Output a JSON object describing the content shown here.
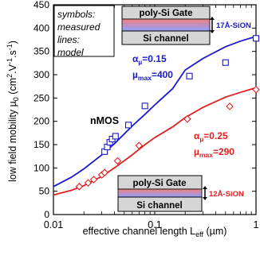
{
  "chart_data": {
    "type": "scatter",
    "xlabel_main": "effective channel length L",
    "xlabel_sub": "eff",
    "xlabel_unit": " (µm)",
    "ylabel_pre": "low field mobility µ",
    "ylabel_sub": "0",
    "ylabel_unit": " (cm",
    "ylabel_sup1": "2",
    "ylabel_mid": ".V",
    "ylabel_sup2": "-1",
    "ylabel_mid2": ".s",
    "ylabel_sup3": "-1",
    "ylabel_end": ")",
    "x_scale": "log",
    "xlim": [
      0.01,
      1
    ],
    "ylim": [
      0,
      450
    ],
    "x_ticks": [
      {
        "value": 0.01,
        "label": "0.01"
      },
      {
        "value": 0.1,
        "label": "0.1"
      },
      {
        "value": 1,
        "label": "1"
      }
    ],
    "y_ticks": [
      {
        "value": 0,
        "label": "0"
      },
      {
        "value": 50,
        "label": "50"
      },
      {
        "value": 100,
        "label": "100"
      },
      {
        "value": 150,
        "label": "150"
      },
      {
        "value": 200,
        "label": "200"
      },
      {
        "value": 250,
        "label": "250"
      },
      {
        "value": 300,
        "label": "300"
      },
      {
        "value": 350,
        "label": "350"
      },
      {
        "value": 400,
        "label": "400"
      },
      {
        "value": 450,
        "label": "450"
      }
    ],
    "series": [
      {
        "marker": "square",
        "color": "#1a1acc",
        "points": [
          {
            "x": 0.032,
            "y": 135
          },
          {
            "x": 0.034,
            "y": 145
          },
          {
            "x": 0.036,
            "y": 155
          },
          {
            "x": 0.038,
            "y": 162
          },
          {
            "x": 0.041,
            "y": 168
          },
          {
            "x": 0.055,
            "y": 192
          },
          {
            "x": 0.08,
            "y": 233
          },
          {
            "x": 0.22,
            "y": 297
          },
          {
            "x": 0.5,
            "y": 326
          },
          {
            "x": 1.0,
            "y": 378
          }
        ]
      },
      {
        "marker": "diamond",
        "color": "#e02020",
        "points": [
          {
            "x": 0.018,
            "y": 60
          },
          {
            "x": 0.022,
            "y": 68
          },
          {
            "x": 0.025,
            "y": 75
          },
          {
            "x": 0.03,
            "y": 85
          },
          {
            "x": 0.032,
            "y": 90
          },
          {
            "x": 0.043,
            "y": 115
          },
          {
            "x": 0.07,
            "y": 148
          },
          {
            "x": 0.21,
            "y": 205
          },
          {
            "x": 0.55,
            "y": 232
          },
          {
            "x": 1.0,
            "y": 268
          }
        ]
      }
    ],
    "model_lines": [
      {
        "color": "#1a1acc",
        "points": [
          {
            "x": 0.01,
            "y": 60
          },
          {
            "x": 0.015,
            "y": 80
          },
          {
            "x": 0.02,
            "y": 98
          },
          {
            "x": 0.03,
            "y": 128
          },
          {
            "x": 0.04,
            "y": 152
          },
          {
            "x": 0.06,
            "y": 190
          },
          {
            "x": 0.08,
            "y": 215
          },
          {
            "x": 0.1,
            "y": 235
          },
          {
            "x": 0.15,
            "y": 270
          },
          {
            "x": 0.2,
            "y": 310
          },
          {
            "x": 0.3,
            "y": 335
          },
          {
            "x": 0.5,
            "y": 360
          },
          {
            "x": 0.7,
            "y": 372
          },
          {
            "x": 1.0,
            "y": 382
          }
        ]
      },
      {
        "color": "#e02020",
        "points": [
          {
            "x": 0.01,
            "y": 42
          },
          {
            "x": 0.015,
            "y": 52
          },
          {
            "x": 0.02,
            "y": 62
          },
          {
            "x": 0.03,
            "y": 82
          },
          {
            "x": 0.04,
            "y": 100
          },
          {
            "x": 0.06,
            "y": 128
          },
          {
            "x": 0.08,
            "y": 150
          },
          {
            "x": 0.1,
            "y": 165
          },
          {
            "x": 0.15,
            "y": 188
          },
          {
            "x": 0.2,
            "y": 208
          },
          {
            "x": 0.3,
            "y": 230
          },
          {
            "x": 0.5,
            "y": 252
          },
          {
            "x": 0.7,
            "y": 262
          },
          {
            "x": 1.0,
            "y": 272
          }
        ]
      }
    ],
    "legend_lines": [
      "symbols:",
      "measured",
      "lines:",
      "model"
    ],
    "annotations": {
      "nmos": "nMOS",
      "blue_alpha_a": "α",
      "blue_alpha_sub": "µ",
      "blue_alpha_val": "=0.15",
      "blue_mu_a": "µ",
      "blue_mu_sub": "max",
      "blue_mu_val": "=400",
      "red_alpha_a": "α",
      "red_alpha_sub": "µ",
      "red_alpha_val": "=0.25",
      "red_mu_a": "µ",
      "red_mu_sub": "max",
      "red_mu_val": "=290"
    },
    "insets": {
      "top_gate": "poly-Si Gate",
      "top_channel": "Si channel",
      "top_oxide": "17Å-SiON",
      "bottom_gate": "poly-Si Gate",
      "bottom_channel": "Si channel",
      "bottom_oxide": "12Å-SiON"
    },
    "colors": {
      "blue": "#1a1acc",
      "red": "#e02020",
      "gate_fill": "#d6d6d6",
      "channel_fill": "#d6d6d6",
      "oxide_top": "#f08080",
      "oxide_bottom": "#8fa0ff"
    }
  }
}
